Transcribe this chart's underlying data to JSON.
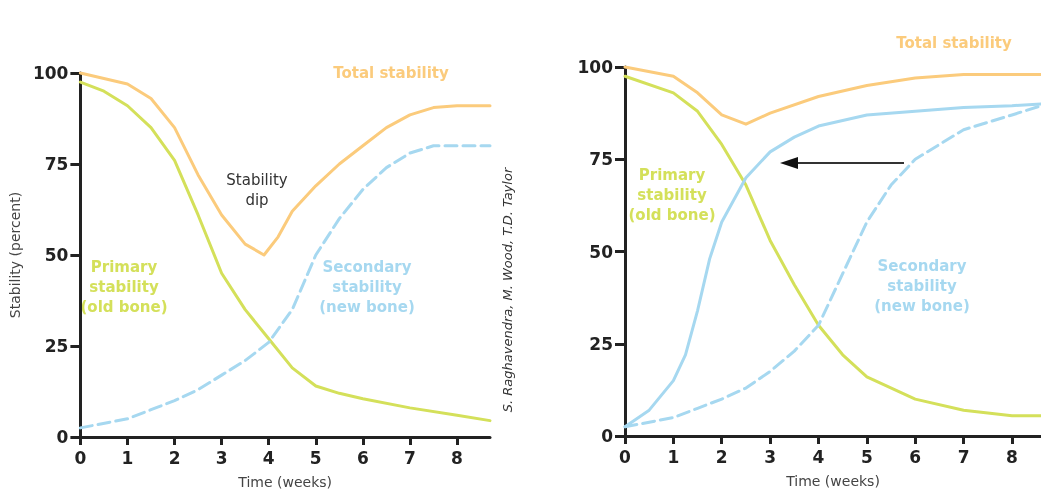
{
  "chart_data": [
    {
      "type": "line",
      "xlabel": "Time (weeks)",
      "ylabel": "Stability (percent)",
      "xlim": [
        0,
        8.7
      ],
      "xticks": [
        0,
        1,
        2,
        3,
        4,
        5,
        6,
        7,
        8
      ],
      "ylim": [
        0,
        100
      ],
      "yticks": [
        0,
        25,
        50,
        75,
        100
      ],
      "grid": false,
      "marker": "none",
      "series": [
        {
          "color": "#fbcb7c",
          "line_style": "solid",
          "x": [
            0,
            1,
            1.5,
            2,
            2.5,
            3,
            3.5,
            3.9,
            4.2,
            4.5,
            5,
            5.5,
            6,
            6.5,
            7,
            7.5,
            8,
            8.7
          ],
          "values": [
            100,
            97,
            93,
            85,
            72,
            61,
            53,
            50,
            55,
            62,
            69,
            75,
            80,
            85,
            88.5,
            90.5,
            91,
            91
          ]
        },
        {
          "color": "#d4e05a",
          "line_style": "solid",
          "x": [
            0,
            0.5,
            1,
            1.5,
            2,
            2.5,
            3,
            3.5,
            4,
            4.5,
            5,
            5.5,
            6,
            7,
            8,
            8.7
          ],
          "values": [
            97.5,
            95,
            91,
            85,
            76,
            61,
            45,
            35,
            27,
            19,
            14,
            12,
            10.5,
            8,
            6,
            4.5
          ]
        },
        {
          "color": "#a6d8f0",
          "line_style": "dashed",
          "x": [
            0,
            1,
            1.5,
            2,
            2.5,
            3,
            3.5,
            4,
            4.5,
            5,
            5.5,
            6,
            6.5,
            7,
            7.5,
            8,
            8.7
          ],
          "values": [
            2.5,
            5,
            7.5,
            10,
            13,
            17,
            21,
            26,
            35,
            50,
            60,
            68,
            74,
            78,
            80,
            80,
            80
          ]
        }
      ],
      "annotations": [
        "Total stability",
        "Primary\nstability\n(old bone)",
        "Secondary\nstability\n(new bone)",
        "Stability\ndip",
        "S. Raghavendra, M. Wood, T.D. Taylor"
      ]
    },
    {
      "type": "line",
      "xlabel": "Time (weeks)",
      "xlim": [
        0,
        8.6
      ],
      "xticks": [
        0,
        1,
        2,
        3,
        4,
        5,
        6,
        7,
        8
      ],
      "ylim": [
        0,
        100
      ],
      "yticks": [
        0,
        25,
        50,
        75,
        100
      ],
      "grid": false,
      "marker": "none",
      "series": [
        {
          "color": "#fbcb7c",
          "line_style": "solid",
          "x": [
            0,
            1,
            1.5,
            2,
            2.5,
            3,
            4,
            5,
            6,
            7,
            8,
            8.6
          ],
          "values": [
            100,
            97.5,
            93,
            87,
            84.5,
            87.5,
            92,
            95,
            97,
            98,
            98,
            98
          ]
        },
        {
          "color": "#d4e05a",
          "line_style": "solid",
          "x": [
            0,
            1,
            1.5,
            2,
            2.5,
            3,
            3.5,
            4,
            4.5,
            5,
            6,
            7,
            8,
            8.6
          ],
          "values": [
            97.5,
            93,
            88,
            79,
            68,
            53,
            41,
            30,
            22,
            16,
            10,
            7,
            5.5,
            5.5
          ]
        },
        {
          "color": "#a6d8f0",
          "line_style": "dashed",
          "x": [
            0,
            1,
            1.5,
            2,
            2.5,
            3,
            3.5,
            4,
            4.5,
            5,
            5.5,
            6,
            7,
            8,
            8.6
          ],
          "values": [
            2.5,
            5,
            7.5,
            10,
            13,
            17.5,
            23,
            30,
            44,
            58,
            68,
            75,
            83,
            87,
            89.5
          ]
        },
        {
          "color": "#a6d8f0",
          "line_style": "solid",
          "x": [
            0,
            0.5,
            1,
            1.25,
            1.5,
            1.75,
            2,
            2.5,
            3,
            3.5,
            4,
            5,
            6,
            7,
            8,
            8.6
          ],
          "values": [
            2.5,
            7,
            15,
            22,
            34,
            48,
            58,
            70,
            77,
            81,
            84,
            87,
            88,
            89,
            89.5,
            90
          ]
        }
      ],
      "annotations": [
        "Total stability",
        "Primary\nstability\n(old bone)",
        "Secondary\nstability\n(new bone)"
      ]
    }
  ]
}
